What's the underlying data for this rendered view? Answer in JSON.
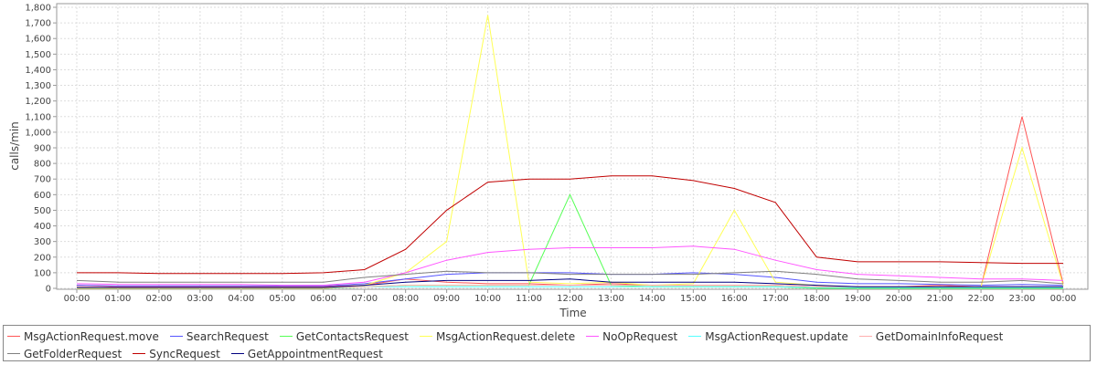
{
  "chart_data": {
    "type": "line",
    "y_label": "calls/min",
    "x_label": "Time",
    "categories": [
      "00:00",
      "01:00",
      "02:00",
      "03:00",
      "04:00",
      "05:00",
      "06:00",
      "07:00",
      "08:00",
      "09:00",
      "10:00",
      "11:00",
      "12:00",
      "13:00",
      "14:00",
      "15:00",
      "16:00",
      "17:00",
      "18:00",
      "19:00",
      "20:00",
      "21:00",
      "22:00",
      "23:00",
      "00:00"
    ],
    "ylim": [
      0,
      1800
    ],
    "yticks": [
      0,
      100,
      200,
      300,
      400,
      500,
      600,
      700,
      800,
      900,
      {
        "value": 1000,
        "label": "1,000"
      },
      {
        "value": 1100,
        "label": "1,100"
      },
      {
        "value": 1200,
        "label": "1,200"
      },
      {
        "value": 1300,
        "label": "1,300"
      },
      {
        "value": 1400,
        "label": "1,400"
      },
      {
        "value": 1500,
        "label": "1,500"
      },
      {
        "value": 1600,
        "label": "1,600"
      },
      {
        "value": 1700,
        "label": "1,700"
      },
      {
        "value": 1800,
        "label": "1,800"
      }
    ],
    "grid": true,
    "series": [
      {
        "name": "MsgActionRequest.move",
        "color": "#ff5555",
        "values": [
          20,
          10,
          10,
          10,
          10,
          10,
          10,
          20,
          60,
          40,
          30,
          30,
          20,
          30,
          20,
          20,
          20,
          20,
          10,
          10,
          10,
          20,
          10,
          1100,
          30
        ]
      },
      {
        "name": "SearchRequest",
        "color": "#5555ff",
        "values": [
          20,
          15,
          15,
          15,
          15,
          15,
          15,
          30,
          60,
          90,
          100,
          100,
          100,
          90,
          90,
          100,
          90,
          70,
          40,
          30,
          30,
          25,
          20,
          25,
          20
        ]
      },
      {
        "name": "GetContactsRequest",
        "color": "#55ff55",
        "values": [
          0,
          0,
          0,
          0,
          0,
          0,
          0,
          10,
          20,
          20,
          20,
          20,
          600,
          20,
          10,
          10,
          10,
          10,
          0,
          0,
          0,
          0,
          0,
          0,
          0
        ]
      },
      {
        "name": "MsgActionRequest.delete",
        "color": "#ffff55",
        "values": [
          0,
          0,
          0,
          0,
          0,
          0,
          0,
          20,
          100,
          300,
          1750,
          40,
          30,
          40,
          20,
          30,
          500,
          40,
          20,
          10,
          10,
          10,
          10,
          900,
          20
        ]
      },
      {
        "name": "NoOpRequest",
        "color": "#ff55ff",
        "values": [
          30,
          25,
          25,
          25,
          25,
          20,
          20,
          40,
          100,
          180,
          230,
          250,
          260,
          260,
          260,
          270,
          250,
          180,
          120,
          90,
          80,
          70,
          60,
          60,
          50
        ]
      },
      {
        "name": "MsgActionRequest.update",
        "color": "#55ffff",
        "values": [
          5,
          5,
          5,
          5,
          5,
          5,
          5,
          10,
          10,
          10,
          10,
          10,
          10,
          10,
          10,
          10,
          10,
          10,
          5,
          5,
          5,
          5,
          5,
          5,
          5
        ]
      },
      {
        "name": "GetDomainInfoRequest",
        "color": "#ffafaf",
        "values": [
          10,
          5,
          5,
          5,
          5,
          5,
          5,
          10,
          20,
          20,
          20,
          20,
          20,
          20,
          20,
          20,
          20,
          20,
          10,
          10,
          10,
          10,
          10,
          10,
          10
        ]
      },
      {
        "name": "GetFolderRequest",
        "color": "#808080",
        "values": [
          50,
          40,
          40,
          40,
          40,
          40,
          40,
          70,
          90,
          110,
          100,
          100,
          90,
          90,
          90,
          90,
          100,
          110,
          90,
          60,
          50,
          40,
          40,
          50,
          30
        ]
      },
      {
        "name": "SyncRequest",
        "color": "#c00000",
        "values": [
          100,
          100,
          95,
          95,
          95,
          95,
          100,
          120,
          250,
          500,
          680,
          700,
          700,
          720,
          720,
          690,
          640,
          550,
          200,
          170,
          170,
          170,
          165,
          160,
          160
        ]
      },
      {
        "name": "GetAppointmentRequest",
        "color": "#000080",
        "values": [
          5,
          5,
          5,
          5,
          5,
          5,
          5,
          20,
          40,
          50,
          50,
          50,
          60,
          40,
          40,
          40,
          40,
          30,
          20,
          10,
          10,
          10,
          10,
          10,
          10
        ]
      }
    ]
  }
}
